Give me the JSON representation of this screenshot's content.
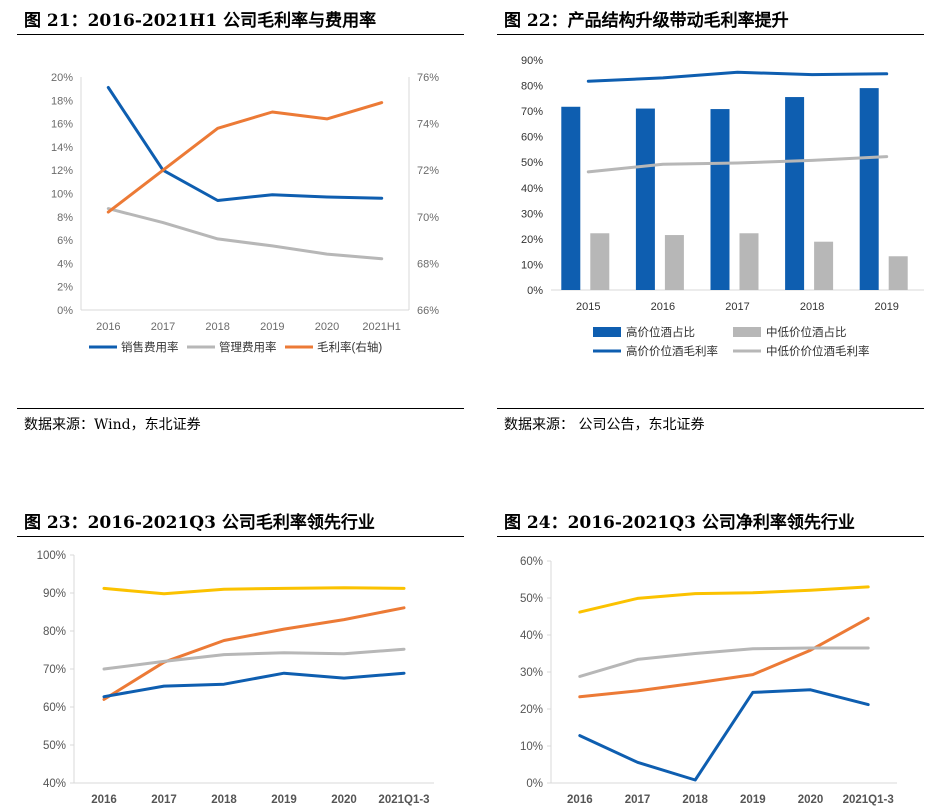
{
  "colors": {
    "blue": "#0e5eb0",
    "gray": "#b7b7b7",
    "orange": "#ec7a36",
    "yellow": "#fbc200",
    "axis": "#d9d9d9",
    "tick": "#6b6b6b"
  },
  "figures": [
    {
      "title": "图 21：2016-2021H1 公司毛利率与费用率",
      "source": "数据来源：Wind，东北证券",
      "chart_data": {
        "type": "line",
        "title": "图 21：2016-2021H1 公司毛利率与费用率",
        "categories": [
          "2016",
          "2017",
          "2018",
          "2019",
          "2020",
          "2021H1"
        ],
        "y_left": {
          "ticks": [
            "0%",
            "2%",
            "4%",
            "6%",
            "8%",
            "10%",
            "12%",
            "14%",
            "16%",
            "18%",
            "20%"
          ],
          "range": [
            0,
            20
          ]
        },
        "y_right": {
          "ticks": [
            "66%",
            "68%",
            "70%",
            "72%",
            "74%",
            "76%"
          ],
          "range": [
            66,
            76
          ]
        },
        "series": [
          {
            "name": "销售费用率",
            "axis": "left",
            "color": "#0e5eb0",
            "values": [
              19.1,
              12.0,
              9.4,
              9.9,
              9.7,
              9.6
            ]
          },
          {
            "name": "管理费用率",
            "axis": "left",
            "color": "#b7b7b7",
            "values": [
              8.7,
              7.5,
              6.1,
              5.5,
              4.8,
              4.4
            ]
          },
          {
            "name": "毛利率(右轴)",
            "axis": "right",
            "color": "#ec7a36",
            "values": [
              70.2,
              72.0,
              73.8,
              74.5,
              74.2,
              74.9
            ]
          }
        ],
        "legend": "bottom"
      }
    },
    {
      "title": "图 22：产品结构升级带动毛利率提升",
      "source": "数据来源：  公司公告，东北证券",
      "chart_data": {
        "type": "bar",
        "title": "图 22：产品结构升级带动毛利率提升",
        "categories": [
          "2015",
          "2016",
          "2017",
          "2018",
          "2019"
        ],
        "y": {
          "ticks": [
            "0%",
            "10%",
            "20%",
            "30%",
            "40%",
            "50%",
            "60%",
            "70%",
            "80%",
            "90%"
          ],
          "range": [
            0,
            90
          ]
        },
        "series": [
          {
            "name": "高价位酒占比",
            "kind": "bar",
            "color": "#0e5eb0",
            "values": [
              71.7,
              71.0,
              70.8,
              75.5,
              79.0
            ]
          },
          {
            "name": "中低价位酒占比",
            "kind": "bar",
            "color": "#b7b7b7",
            "values": [
              22.2,
              21.5,
              22.2,
              18.9,
              13.2
            ]
          },
          {
            "name": "高价价位酒毛利率",
            "kind": "line",
            "color": "#0e5eb0",
            "values": [
              81.7,
              83.0,
              85.2,
              84.3,
              84.6
            ]
          },
          {
            "name": "中低价价位酒毛利率",
            "kind": "line",
            "color": "#b7b7b7",
            "values": [
              46.2,
              49.2,
              49.7,
              50.7,
              52.2
            ]
          }
        ],
        "legend": "bottom"
      }
    },
    {
      "title": "图 23：2016-2021Q3 公司毛利率领先行业",
      "chart_data": {
        "type": "line",
        "title": "图 23：2016-2021Q3 公司毛利率领先行业",
        "categories": [
          "2016",
          "2017",
          "2018",
          "2019",
          "2020",
          "2021Q1-3"
        ],
        "y": {
          "ticks": [
            "40%",
            "50%",
            "60%",
            "70%",
            "80%",
            "90%",
            "100%"
          ],
          "range": [
            40,
            100
          ]
        },
        "series": [
          {
            "name": "",
            "color": "#fbc200",
            "values": [
              91.2,
              89.8,
              91.0,
              91.2,
              91.4,
              91.2
            ]
          },
          {
            "name": "",
            "color": "#ec7a36",
            "values": [
              62.0,
              71.8,
              77.5,
              80.5,
              83.0,
              86.1
            ]
          },
          {
            "name": "",
            "color": "#b7b7b7",
            "values": [
              70.0,
              72.0,
              73.8,
              74.3,
              74.0,
              75.2
            ]
          },
          {
            "name": "",
            "color": "#0e5eb0",
            "values": [
              62.7,
              65.5,
              66.0,
              68.9,
              67.6,
              68.9
            ]
          }
        ]
      }
    },
    {
      "title": "图 24：2016-2021Q3 公司净利率领先行业",
      "chart_data": {
        "type": "line",
        "title": "图 24：2016-2021Q3 公司净利率领先行业",
        "categories": [
          "2016",
          "2017",
          "2018",
          "2019",
          "2020",
          "2021Q1-3"
        ],
        "y": {
          "ticks": [
            "0%",
            "10%",
            "20%",
            "30%",
            "40%",
            "50%",
            "60%"
          ],
          "range": [
            0,
            60
          ]
        },
        "series": [
          {
            "name": "",
            "color": "#fbc200",
            "values": [
              46.2,
              49.9,
              51.2,
              51.4,
              52.1,
              53.0
            ]
          },
          {
            "name": "",
            "color": "#ec7a36",
            "values": [
              23.3,
              24.9,
              27.0,
              29.3,
              35.9,
              44.5
            ]
          },
          {
            "name": "",
            "color": "#b7b7b7",
            "values": [
              28.8,
              33.4,
              35.0,
              36.3,
              36.5,
              36.5
            ]
          },
          {
            "name": "",
            "color": "#0e5eb0",
            "values": [
              12.8,
              5.6,
              0.8,
              24.5,
              25.2,
              21.2
            ]
          }
        ]
      }
    }
  ]
}
